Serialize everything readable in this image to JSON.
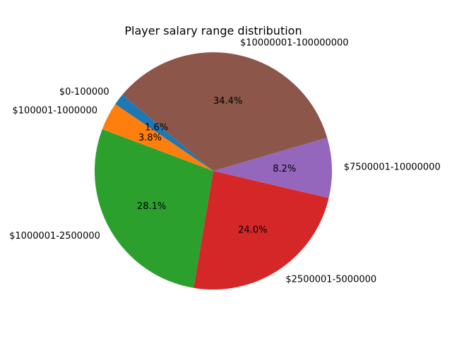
{
  "chart_data": {
    "type": "pie",
    "title": "Player salary range distribution",
    "start_angle_deg": 140,
    "direction": "counterclockwise",
    "slices": [
      {
        "label": "$0-100000",
        "value": 1.6,
        "pct_text": "1.6%",
        "color": "#1f77b4"
      },
      {
        "label": "$100001-1000000",
        "value": 3.8,
        "pct_text": "3.8%",
        "color": "#ff7f0e"
      },
      {
        "label": "$1000001-2500000",
        "value": 28.1,
        "pct_text": "28.1%",
        "color": "#2ca02c"
      },
      {
        "label": "$2500001-5000000",
        "value": 24.0,
        "pct_text": "24.0%",
        "color": "#d62728"
      },
      {
        "label": "$7500001-10000000",
        "value": 8.2,
        "pct_text": "8.2%",
        "color": "#9467bd"
      },
      {
        "label": "$10000001-100000000",
        "value": 34.4,
        "pct_text": "34.4%",
        "color": "#8c564b"
      }
    ]
  }
}
